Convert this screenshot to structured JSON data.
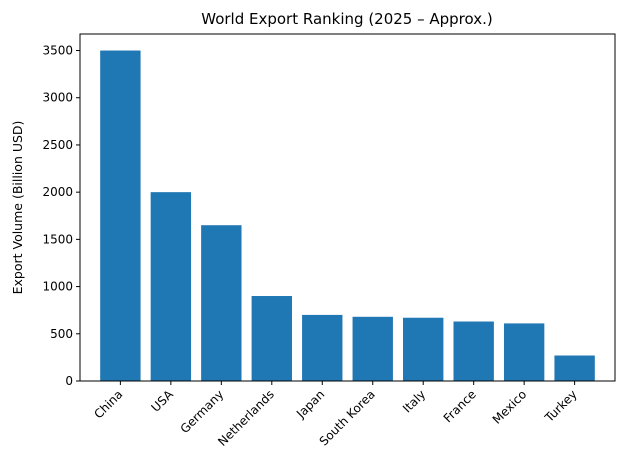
{
  "chart_data": {
    "type": "bar",
    "title": "World Export Ranking (2025 – Approx.)",
    "xlabel": "",
    "ylabel": "Export Volume (Billion USD)",
    "categories": [
      "China",
      "USA",
      "Germany",
      "Netherlands",
      "Japan",
      "South Korea",
      "Italy",
      "France",
      "Mexico",
      "Turkey"
    ],
    "values": [
      3500,
      2000,
      1650,
      900,
      700,
      680,
      670,
      630,
      610,
      270
    ],
    "ylim": [
      0,
      3675
    ],
    "yticks": [
      0,
      500,
      1000,
      1500,
      2000,
      2500,
      3000,
      3500
    ],
    "bar_color": "#1f77b4",
    "grid": false
  }
}
